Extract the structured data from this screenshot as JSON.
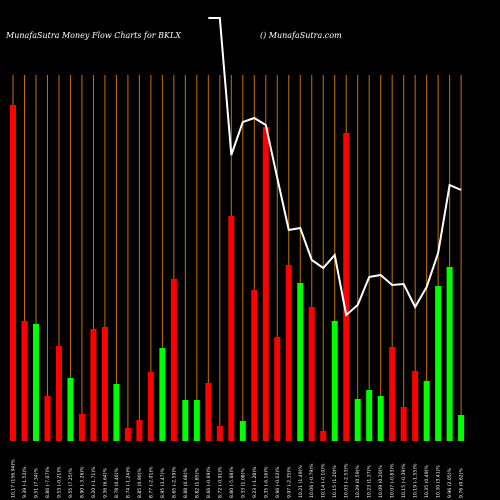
{
  "chart_data": {
    "type": "bar",
    "title": "MunafaSutra  Money Flow  Charts for BKLX",
    "subtitle": "() MunafaSutra.com",
    "categories": [
      "10.17 (156.94)%",
      "9.39 (-1.52)%",
      "9.51 (7.34)%",
      "8.86 (-7.07)%",
      "9.53 (-0.21)%",
      "9.55 (7.25)%",
      "8.90 (-3.26)%",
      "9.20 (-1.71)%",
      "9.36 (6.64)%",
      "8.78 (0.46)%",
      "8.74 (-1.24)%",
      "8.85 (0.90)%",
      "8.77 (-2.01)%",
      "8.95 (3.47)%",
      "8.65 (-2.59)%",
      "8.88 (0.68)%",
      "8.82 (1.85)%",
      "8.66 (-0.69)%",
      "8.72 (-0.91)%",
      "8.80 (-5.68)%",
      "9.33 (1.08)%",
      "9.23 (-1.28)%",
      "9.35 (-6.16)%",
      "9.96 (-0.02)%",
      "9.97 (-2.35)%",
      "10.21 (1.49)%",
      "10.06 (-0.79)%",
      "10.14 (-0.10)%",
      "10.15 (1.20)%",
      "10.03 (-2.53)%",
      "10.29 (0.59)%",
      "10.23 (1.37)%",
      "10.09 (0.20)%",
      "10.07 (-0.83)%",
      "10.15 (-0.39)%",
      "10.19 (-1.55)%",
      "10.35 (0.49)%",
      "10.30 (3.41)%",
      "9.96 (2.05)%",
      "9.76 (0.62)%"
    ],
    "ylim": [
      0,
      441
    ],
    "series": [
      {
        "type": "bar",
        "values": [
          336,
          120,
          117,
          45,
          95,
          63,
          27,
          112,
          114,
          57,
          13,
          21,
          69,
          93,
          162,
          41,
          41,
          58,
          15,
          225,
          20,
          151,
          314,
          104,
          176,
          158,
          134,
          10,
          120,
          308,
          42,
          51,
          45,
          94,
          34,
          70,
          60,
          155,
          174,
          26
        ],
        "colors": [
          "#ff0000",
          "#ff0000",
          "#00ff00",
          "#ff0000",
          "#ff0000",
          "#00ff00",
          "#ff0000",
          "#ff0000",
          "#ff0000",
          "#00ff00",
          "#ff0000",
          "#ff0000",
          "#ff0000",
          "#00ff00",
          "#ff0000",
          "#00ff00",
          "#00ff00",
          "#ff0000",
          "#ff0000",
          "#ff0000",
          "#00ff00",
          "#ff0000",
          "#ff0000",
          "#ff0000",
          "#ff0000",
          "#00ff00",
          "#ff0000",
          "#ff0000",
          "#00ff00",
          "#ff0000",
          "#00ff00",
          "#00ff00",
          "#00ff00",
          "#ff0000",
          "#ff0000",
          "#ff0000",
          "#00ff00",
          "#00ff00",
          "#00ff00",
          "#00ff00"
        ]
      },
      {
        "type": "line",
        "color": "#ffffff",
        "values": [
          null,
          null,
          null,
          null,
          null,
          null,
          null,
          null,
          null,
          null,
          null,
          null,
          null,
          null,
          null,
          null,
          null,
          423,
          423,
          286,
          319,
          323,
          316,
          263,
          211,
          213,
          181,
          173,
          186,
          126,
          136,
          164,
          166,
          156,
          157,
          134,
          154,
          188,
          256,
          251
        ]
      }
    ]
  }
}
